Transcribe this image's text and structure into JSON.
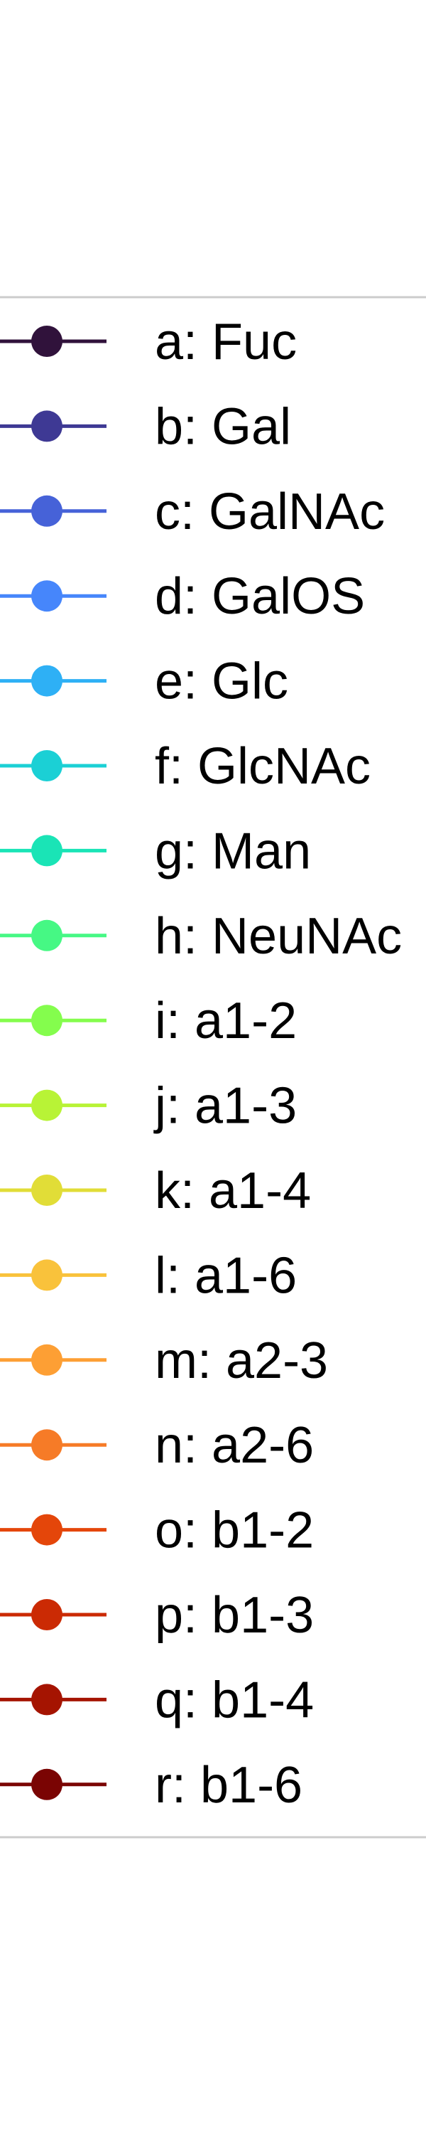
{
  "chart_data": {
    "type": "line",
    "title": "",
    "legend": {
      "placement": "right",
      "entries": [
        {
          "label": "a: Fuc",
          "color": "#30123b"
        },
        {
          "label": "b: Gal",
          "color": "#3e3994"
        },
        {
          "label": "c: GalNAc",
          "color": "#4662d8"
        },
        {
          "label": "d: GalOS",
          "color": "#4686fb"
        },
        {
          "label": "e: Glc",
          "color": "#2eb0f5"
        },
        {
          "label": "f: GlcNAc",
          "color": "#1bd0d5"
        },
        {
          "label": "g: Man",
          "color": "#1ae4b6"
        },
        {
          "label": "h: NeuNAc",
          "color": "#46f884"
        },
        {
          "label": "i: a1-2",
          "color": "#84fd4d"
        },
        {
          "label": "j: a1-3",
          "color": "#b8f336"
        },
        {
          "label": "k: a1-4",
          "color": "#e1dd37"
        },
        {
          "label": "l: a1-6",
          "color": "#f9c23b"
        },
        {
          "label": "m: a2-3",
          "color": "#fd9f34"
        },
        {
          "label": "n: a2-6",
          "color": "#f67b27"
        },
        {
          "label": "o: b1-2",
          "color": "#e4460a"
        },
        {
          "label": "p: b1-3",
          "color": "#cb2a04"
        },
        {
          "label": "q: b1-4",
          "color": "#a51401"
        },
        {
          "label": "r: b1-6",
          "color": "#7a0403"
        }
      ]
    }
  }
}
